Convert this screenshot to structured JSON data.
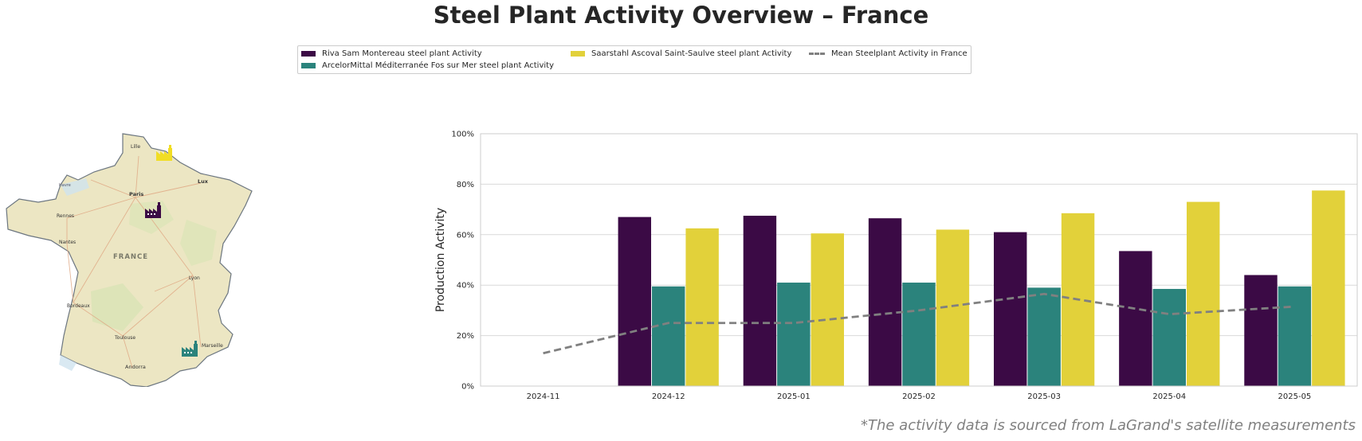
{
  "title": "Steel Plant Activity Overview – France",
  "footnote": "*The activity data is sourced from LaGrand's satellite measurements",
  "legend": {
    "items": [
      {
        "label": "Riva Sam Montereau steel plant Activity",
        "color": "#3b0a45",
        "kind": "bar"
      },
      {
        "label": "ArcelorMittal Méditerranée Fos sur Mer steel plant Activity",
        "color": "#2b837c",
        "kind": "bar"
      },
      {
        "label": "Saarstahl Ascoval Saint-Saulve steel plant Activity",
        "color": "#e2d13a",
        "kind": "bar"
      },
      {
        "label": "Mean Steelplant Activity in France",
        "color": "#808080",
        "kind": "line"
      }
    ]
  },
  "map": {
    "labels": {
      "lille": "Lille",
      "paris": "Paris",
      "rennes": "Rennes",
      "nantes": "Nantes",
      "france": "FRANCE",
      "lyon": "Lyon",
      "bordeaux": "Bordeaux",
      "toulouse": "Toulouse",
      "marseille": "Marseille",
      "andorra": "Andorra",
      "lux": "Lux",
      "le_havre": "Havre"
    },
    "markers": [
      {
        "name": "Saarstahl Ascoval Saint-Saulve",
        "color": "#f1dd24",
        "icon": "factory-icon"
      },
      {
        "name": "Riva Sam Montereau",
        "color": "#3b0a45",
        "icon": "factory-icon"
      },
      {
        "name": "ArcelorMittal Méditerranée Fos sur Mer",
        "color": "#2b837c",
        "icon": "factory-icon"
      }
    ]
  },
  "chart_data": {
    "type": "bar",
    "categories": [
      "2024-11",
      "2024-12",
      "2025-01",
      "2025-02",
      "2025-03",
      "2025-04",
      "2025-05"
    ],
    "series": [
      {
        "name": "Riva Sam Montereau steel plant Activity",
        "color": "#3b0a45",
        "values": [
          null,
          67,
          67.5,
          66.5,
          61,
          53.5,
          44
        ]
      },
      {
        "name": "ArcelorMittal Méditerranée Fos sur Mer steel plant Activity",
        "color": "#2b837c",
        "values": [
          null,
          39.5,
          41,
          41,
          39,
          38.5,
          39.5
        ]
      },
      {
        "name": "Saarstahl Ascoval Saint-Saulve steel plant Activity",
        "color": "#e2d13a",
        "values": [
          null,
          62.5,
          60.5,
          62,
          68.5,
          73,
          77.5
        ]
      }
    ],
    "line": {
      "name": "Mean Steelplant Activity in France",
      "color": "#808080",
      "style": "dashed",
      "values": [
        13,
        25,
        25,
        30,
        36.5,
        28.5,
        31.5
      ]
    },
    "ylabel": "Production Activity",
    "xlabel": "",
    "ylim": [
      0,
      100
    ],
    "yticks": [
      0,
      20,
      40,
      60,
      80,
      100
    ],
    "ytick_labels": [
      "0%",
      "20%",
      "40%",
      "60%",
      "80%",
      "100%"
    ],
    "grid": "horizontal"
  }
}
